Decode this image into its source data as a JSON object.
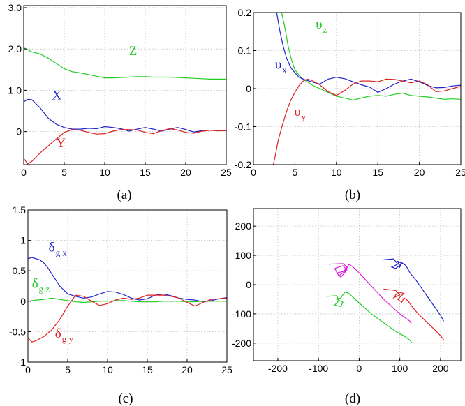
{
  "colors": {
    "x": "#2222cc",
    "y": "#dd2222",
    "z": "#22cc22",
    "m": "#dd22dd"
  },
  "chart_data": [
    {
      "type": "line",
      "caption": "(a)",
      "xlim": [
        0,
        25
      ],
      "ylim": [
        -0.8,
        3.05
      ],
      "xticks": [
        0,
        5,
        10,
        15,
        20,
        25
      ],
      "yticks": [
        0,
        1.0,
        2.0,
        3.0
      ],
      "xtick_labels": [
        "0",
        "5",
        "10",
        "15",
        "20",
        "25"
      ],
      "ytick_labels": [
        "0",
        "1.0",
        "2.0",
        "3.0"
      ],
      "grid": true,
      "series": [
        {
          "name": "Z",
          "color": "z",
          "x": [
            0,
            1,
            2,
            3,
            4,
            5,
            6,
            7,
            8,
            9,
            10,
            11,
            12,
            13,
            14,
            15,
            16,
            17,
            18,
            19,
            20,
            21,
            22,
            23,
            24,
            25
          ],
          "y": [
            2.03,
            1.93,
            1.88,
            1.78,
            1.65,
            1.52,
            1.45,
            1.42,
            1.38,
            1.34,
            1.3,
            1.3,
            1.31,
            1.32,
            1.33,
            1.33,
            1.32,
            1.32,
            1.32,
            1.31,
            1.3,
            1.29,
            1.28,
            1.27,
            1.27,
            1.27
          ]
        },
        {
          "name": "X",
          "color": "x",
          "x": [
            0,
            0.5,
            1,
            2,
            3,
            4,
            5,
            6,
            7,
            8,
            9,
            10,
            11,
            12,
            13,
            14,
            15,
            16,
            17,
            18,
            19,
            20,
            21,
            22,
            23,
            24,
            25
          ],
          "y": [
            0.72,
            0.78,
            0.77,
            0.58,
            0.33,
            0.18,
            0.1,
            0.06,
            0.06,
            0.08,
            0.07,
            0.12,
            0.1,
            0.07,
            0.01,
            0.06,
            0.1,
            0.06,
            0.01,
            0.06,
            0.1,
            0.05,
            -0.01,
            0.02,
            0.03,
            0.02,
            0.02
          ]
        },
        {
          "name": "Y",
          "color": "y",
          "x": [
            0,
            0.5,
            1,
            2,
            3,
            4,
            5,
            6,
            7,
            8,
            9,
            10,
            11,
            12,
            13,
            14,
            15,
            16,
            17,
            18,
            19,
            20,
            21,
            22,
            23,
            24,
            25
          ],
          "y": [
            -0.65,
            -0.78,
            -0.72,
            -0.52,
            -0.35,
            -0.18,
            -0.02,
            0.05,
            0.03,
            -0.02,
            -0.06,
            -0.05,
            0.01,
            0.05,
            0.05,
            0.04,
            -0.02,
            -0.05,
            0.02,
            0.07,
            0.04,
            -0.02,
            -0.04,
            0.01,
            0.03,
            0.02,
            0.02
          ]
        }
      ],
      "annotations": [
        {
          "text": "Z",
          "sub": "",
          "color": "z",
          "x": 13,
          "y": 1.85
        },
        {
          "text": "X",
          "sub": "",
          "color": "x",
          "x": 3.5,
          "y": 0.78
        },
        {
          "text": "Y",
          "sub": "",
          "color": "y",
          "x": 4.0,
          "y": -0.38
        }
      ]
    },
    {
      "type": "line",
      "caption": "(b)",
      "xlim": [
        0,
        25
      ],
      "ylim": [
        -0.2,
        0.2
      ],
      "xticks": [
        0,
        5,
        10,
        15,
        20,
        25
      ],
      "yticks": [
        -0.2,
        -0.1,
        0,
        0.1,
        0.2
      ],
      "xtick_labels": [
        "0",
        "5",
        "10",
        "15",
        "20",
        "25"
      ],
      "ytick_labels": [
        "-0.2",
        "-0.1",
        "0",
        "0.1",
        "0.2"
      ],
      "grid": true,
      "series": [
        {
          "name": "υz",
          "color": "z",
          "x": [
            3.4,
            3.8,
            4.2,
            4.6,
            5,
            5.5,
            6,
            6.5,
            7,
            8,
            9,
            10,
            11,
            12,
            13,
            14,
            15,
            16,
            17,
            18,
            19,
            20,
            21,
            22,
            23,
            24,
            25
          ],
          "y": [
            0.2,
            0.16,
            0.11,
            0.075,
            0.05,
            0.035,
            0.025,
            0.018,
            0.01,
            0,
            -0.01,
            -0.02,
            -0.025,
            -0.03,
            -0.025,
            -0.02,
            -0.018,
            -0.02,
            -0.015,
            -0.012,
            -0.018,
            -0.02,
            -0.022,
            -0.025,
            -0.028,
            -0.027,
            -0.028
          ]
        },
        {
          "name": "υx",
          "color": "x",
          "x": [
            2.8,
            3.2,
            3.6,
            4,
            4.5,
            5,
            5.5,
            6,
            7,
            8,
            9,
            10,
            11,
            12,
            13,
            14,
            15,
            16,
            17,
            18,
            19,
            20,
            21,
            22,
            23,
            24,
            25
          ],
          "y": [
            0.2,
            0.15,
            0.11,
            0.08,
            0.055,
            0.042,
            0.03,
            0.025,
            0.018,
            0.012,
            0.025,
            0.03,
            0.026,
            0.018,
            0.01,
            0.004,
            -0.01,
            0.0,
            0.012,
            0.02,
            0.025,
            0.018,
            0.008,
            0.002,
            0.003,
            0.007,
            0.009
          ]
        },
        {
          "name": "υy",
          "color": "y",
          "x": [
            2.4,
            2.6,
            3,
            3.5,
            4,
            4.5,
            5,
            5.5,
            6,
            6.5,
            7,
            8,
            9,
            10,
            11,
            12,
            13,
            14,
            15,
            16,
            17,
            18,
            19,
            20,
            21,
            22,
            23,
            24,
            25
          ],
          "y": [
            -0.2,
            -0.18,
            -0.135,
            -0.095,
            -0.06,
            -0.03,
            -0.01,
            0.008,
            0.02,
            0.025,
            0.022,
            0.01,
            -0.008,
            -0.018,
            -0.005,
            0.012,
            0.02,
            0.02,
            0.018,
            0.025,
            0.024,
            0.02,
            0.015,
            0.02,
            0.01,
            -0.008,
            -0.006,
            0.0,
            0.006
          ]
        }
      ],
      "annotations": [
        {
          "text": "υ",
          "sub": "z",
          "color": "z",
          "x": 7.5,
          "y": 0.158
        },
        {
          "text": "υ",
          "sub": "x",
          "color": "x",
          "x": 2.6,
          "y": 0.052
        },
        {
          "text": "υ",
          "sub": "y",
          "color": "y",
          "x": 4.9,
          "y": -0.072
        }
      ]
    },
    {
      "type": "line",
      "caption": "(c)",
      "xlim": [
        0,
        25
      ],
      "ylim": [
        -1,
        1.5
      ],
      "xticks": [
        0,
        5,
        10,
        15,
        20,
        25
      ],
      "yticks": [
        -1,
        -0.5,
        0,
        0.5,
        1,
        1.5
      ],
      "xtick_labels": [
        "0",
        "5",
        "10",
        "15",
        "20",
        "25"
      ],
      "ytick_labels": [
        "-1",
        "-0.5",
        "0",
        "0.5",
        "1",
        "1.5"
      ],
      "grid": true,
      "series": [
        {
          "name": "δgx",
          "color": "x",
          "x": [
            0,
            0.5,
            1,
            1.5,
            2,
            2.5,
            3,
            3.5,
            4,
            5,
            6,
            7,
            8,
            9,
            10,
            11,
            12,
            13,
            14,
            15,
            16,
            17,
            18,
            19,
            20,
            21,
            22,
            23,
            24,
            25
          ],
          "y": [
            0.7,
            0.72,
            0.7,
            0.68,
            0.63,
            0.55,
            0.45,
            0.35,
            0.25,
            0.12,
            0.08,
            0.05,
            0.07,
            0.12,
            0.16,
            0.15,
            0.11,
            0.05,
            0.02,
            0.04,
            0.1,
            0.12,
            0.09,
            0.05,
            0.03,
            0.02,
            -0.01,
            0.01,
            0.04,
            0.06
          ]
        },
        {
          "name": "δgz",
          "color": "z",
          "x": [
            0,
            1,
            2,
            3,
            4,
            5,
            6,
            7,
            8,
            9,
            10,
            11,
            12,
            13,
            14,
            15,
            16,
            17,
            18,
            19,
            20,
            21,
            22,
            23,
            24,
            25
          ],
          "y": [
            0.0,
            0.02,
            0.03,
            0.05,
            0.03,
            0.01,
            -0.01,
            -0.02,
            -0.01,
            0.0,
            0.0,
            0.01,
            0.01,
            0.0,
            -0.01,
            -0.01,
            -0.01,
            0.0,
            0.0,
            0.0,
            -0.01,
            -0.01,
            0.0,
            0.0,
            0.0,
            0.0
          ]
        },
        {
          "name": "δgy",
          "color": "y",
          "x": [
            0,
            0.5,
            1,
            2,
            3,
            4,
            5,
            6,
            7,
            8,
            9,
            10,
            11,
            12,
            13,
            14,
            15,
            16,
            17,
            18,
            19,
            20,
            21,
            22,
            23,
            24,
            25
          ],
          "y": [
            -0.6,
            -0.67,
            -0.65,
            -0.58,
            -0.47,
            -0.3,
            -0.08,
            0.1,
            0.08,
            0.0,
            -0.07,
            -0.04,
            0.02,
            0.05,
            0.03,
            0.05,
            0.1,
            0.1,
            0.1,
            0.08,
            0.05,
            -0.02,
            -0.08,
            -0.02,
            0.03,
            0.04,
            0.05
          ]
        }
      ],
      "annotations": [
        {
          "text": "δ",
          "sub": "g x",
          "color": "x",
          "x": 2.6,
          "y": 0.82
        },
        {
          "text": "δ",
          "sub": "g z",
          "color": "z",
          "x": 0.5,
          "y": 0.22
        },
        {
          "text": "δ",
          "sub": "g y",
          "color": "y",
          "x": 3.4,
          "y": -0.6
        }
      ]
    },
    {
      "type": "line",
      "caption": "(d)",
      "xlim": [
        -260,
        250
      ],
      "ylim": [
        -260,
        260
      ],
      "xticks": [
        -200,
        -100,
        0,
        100,
        200
      ],
      "yticks": [
        -200,
        -100,
        0,
        100,
        200
      ],
      "xtick_labels": [
        "-200",
        "-100",
        "0",
        "100",
        "200"
      ],
      "ytick_labels": [
        "-200",
        "-100",
        "0",
        "100",
        "200"
      ],
      "grid": true,
      "series": [
        {
          "name": "",
          "color": "m",
          "x": [
            -75,
            -40,
            -30,
            -38,
            -55,
            -45,
            -30,
            -40,
            -60,
            -50,
            -35,
            -25,
            -15,
            0,
            20,
            40,
            60,
            80,
            100,
            115,
            125,
            128
          ],
          "y": [
            70,
            72,
            60,
            45,
            40,
            25,
            50,
            65,
            55,
            30,
            45,
            70,
            60,
            40,
            10,
            -20,
            -50,
            -75,
            -100,
            -115,
            -125,
            -135
          ]
        },
        {
          "name": "",
          "color": "x",
          "x": [
            60,
            85,
            95,
            80,
            90,
            105,
            95,
            100,
            105,
            115,
            125,
            140,
            155,
            170,
            185,
            200,
            208
          ],
          "y": [
            85,
            88,
            70,
            60,
            55,
            72,
            80,
            60,
            75,
            65,
            40,
            15,
            -15,
            -45,
            -75,
            -105,
            -125
          ]
        },
        {
          "name": "",
          "color": "y",
          "x": [
            60,
            90,
            100,
            85,
            95,
            110,
            95,
            105,
            110,
            120,
            130,
            145,
            160,
            175,
            190,
            200,
            208
          ],
          "y": [
            -15,
            -20,
            -35,
            -45,
            -25,
            -30,
            -50,
            -60,
            -45,
            -55,
            -75,
            -100,
            -120,
            -140,
            -160,
            -175,
            -188
          ]
        },
        {
          "name": "",
          "color": "z",
          "x": [
            -80,
            -55,
            -50,
            -60,
            -45,
            -40,
            -55,
            -45,
            -35,
            -25,
            -10,
            10,
            30,
            50,
            70,
            90,
            110,
            125,
            130
          ],
          "y": [
            -40,
            -38,
            -55,
            -70,
            -75,
            -60,
            -50,
            -45,
            -25,
            -30,
            -50,
            -75,
            -100,
            -120,
            -140,
            -160,
            -175,
            -190,
            -200
          ]
        }
      ],
      "annotations": []
    }
  ]
}
